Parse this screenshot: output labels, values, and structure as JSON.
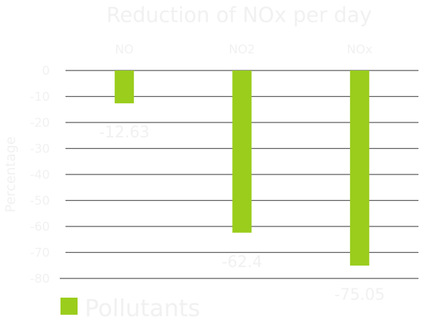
{
  "chart_data": {
    "type": "bar",
    "title": "Reduction of NOx per day",
    "ylabel": "Percentage",
    "xlabel": "",
    "categories": [
      "NO",
      "NO2",
      "NOx"
    ],
    "series": [
      {
        "name": "Pollutants",
        "values": [
          -12.63,
          -62.4,
          -75.05
        ],
        "labels": [
          "-12.63",
          "-62.4",
          "-75.05"
        ]
      }
    ],
    "ylim": [
      -80,
      0
    ],
    "yticks": [
      0,
      -10,
      -20,
      -30,
      -40,
      -50,
      -60,
      -70,
      -80
    ],
    "grid": true,
    "x_axis_position": "top",
    "legend": "bottom-left",
    "colors": {
      "bar": "#9acd1c",
      "grid": "#595959",
      "text": "#f1f1f1"
    }
  }
}
